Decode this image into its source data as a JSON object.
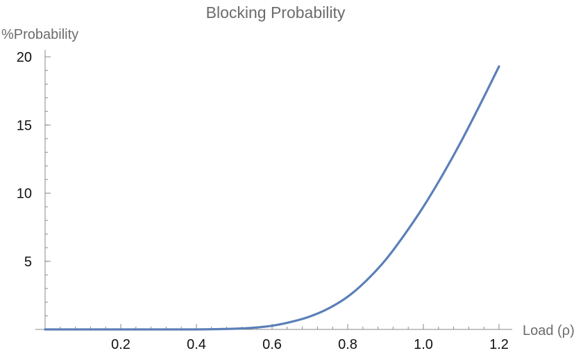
{
  "chart_data": {
    "type": "line",
    "title": "Blocking Probability",
    "xlabel": "Load (ρ)",
    "ylabel": "%Probability",
    "xlim": [
      0.0,
      1.2
    ],
    "ylim": [
      0,
      20
    ],
    "x_ticks": [
      0.2,
      0.4,
      0.6,
      0.8,
      1.0,
      1.2
    ],
    "x_tick_labels": [
      "0.2",
      "0.4",
      "0.6",
      "0.8",
      "1.0",
      "1.2"
    ],
    "y_ticks": [
      5,
      10,
      15,
      20
    ],
    "y_tick_labels": [
      "5",
      "10",
      "15",
      "20"
    ],
    "grid": false,
    "colors": {
      "series": "#5b7fb8",
      "axis": "#8a8a8a",
      "label": "#6b6b6b"
    },
    "series": [
      {
        "x": [
          0.0,
          0.1,
          0.2,
          0.3,
          0.4,
          0.45,
          0.5,
          0.55,
          0.6,
          0.65,
          0.7,
          0.75,
          0.8,
          0.85,
          0.9,
          0.95,
          1.0,
          1.05,
          1.1,
          1.15,
          1.2
        ],
        "y": [
          0.0,
          0.0,
          0.0,
          0.0,
          0.0,
          0.02,
          0.05,
          0.12,
          0.27,
          0.55,
          0.95,
          1.55,
          2.4,
          3.6,
          5.1,
          6.95,
          9.0,
          11.3,
          13.8,
          16.5,
          19.3
        ]
      }
    ]
  }
}
